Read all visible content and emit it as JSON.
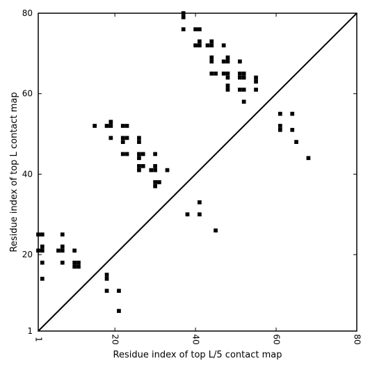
{
  "chart_data": {
    "type": "heatmap",
    "xlabel": "Residue index of top L/5 contact map",
    "ylabel": "Residue index of top L contact map",
    "xlim": [
      1,
      80
    ],
    "ylim": [
      1,
      80
    ],
    "xticks": [
      1,
      20,
      40,
      60,
      80
    ],
    "yticks": [
      1,
      20,
      40,
      60,
      80
    ],
    "diagonal_line": true,
    "cell_color": "#000000",
    "upper_left_contacts": [
      [
        37,
        79
      ],
      [
        37,
        80
      ],
      [
        37,
        76
      ],
      [
        40,
        76
      ],
      [
        41,
        76
      ],
      [
        40,
        72
      ],
      [
        41,
        72
      ],
      [
        41,
        73
      ],
      [
        43,
        72
      ],
      [
        44,
        72
      ],
      [
        44,
        73
      ],
      [
        47,
        72
      ],
      [
        44,
        68
      ],
      [
        44,
        69
      ],
      [
        47,
        68
      ],
      [
        48,
        68
      ],
      [
        48,
        69
      ],
      [
        51,
        68
      ],
      [
        44,
        65
      ],
      [
        45,
        65
      ],
      [
        47,
        65
      ],
      [
        48,
        65
      ],
      [
        48,
        64
      ],
      [
        51,
        65
      ],
      [
        52,
        65
      ],
      [
        51,
        64
      ],
      [
        52,
        64
      ],
      [
        55,
        64
      ],
      [
        55,
        63
      ],
      [
        48,
        62
      ],
      [
        48,
        61
      ],
      [
        51,
        61
      ],
      [
        52,
        61
      ],
      [
        55,
        61
      ],
      [
        52,
        58
      ],
      [
        15,
        52
      ],
      [
        18,
        52
      ],
      [
        19,
        52
      ],
      [
        19,
        53
      ],
      [
        22,
        52
      ],
      [
        23,
        52
      ],
      [
        19,
        49
      ],
      [
        22,
        49
      ],
      [
        23,
        49
      ],
      [
        22,
        48
      ],
      [
        26,
        49
      ],
      [
        26,
        48
      ],
      [
        22,
        45
      ],
      [
        23,
        45
      ],
      [
        26,
        45
      ],
      [
        27,
        45
      ],
      [
        26,
        44
      ],
      [
        30,
        45
      ],
      [
        26,
        42
      ],
      [
        27,
        42
      ],
      [
        30,
        42
      ],
      [
        26,
        41
      ],
      [
        29,
        41
      ],
      [
        30,
        41
      ],
      [
        33,
        41
      ],
      [
        30,
        38
      ],
      [
        31,
        38
      ],
      [
        30,
        37
      ],
      [
        38,
        30
      ],
      [
        41,
        30
      ],
      [
        41,
        33
      ],
      [
        45,
        26
      ],
      [
        1,
        25
      ],
      [
        2,
        25
      ],
      [
        7,
        25
      ],
      [
        2,
        22
      ],
      [
        1,
        21
      ],
      [
        2,
        21
      ],
      [
        6,
        21
      ],
      [
        7,
        21
      ],
      [
        7,
        22
      ],
      [
        10,
        21
      ],
      [
        2,
        18
      ],
      [
        7,
        18
      ],
      [
        10,
        18
      ],
      [
        11,
        18
      ],
      [
        10,
        17
      ],
      [
        11,
        17
      ],
      [
        2,
        14
      ],
      [
        18,
        15
      ],
      [
        18,
        14
      ],
      [
        21,
        11
      ],
      [
        18,
        11
      ],
      [
        21,
        6
      ]
    ],
    "lower_right_contacts": [
      [
        61,
        55
      ],
      [
        64,
        55
      ],
      [
        61,
        52
      ],
      [
        61,
        51
      ],
      [
        64,
        51
      ],
      [
        65,
        48
      ],
      [
        68,
        44
      ]
    ]
  }
}
